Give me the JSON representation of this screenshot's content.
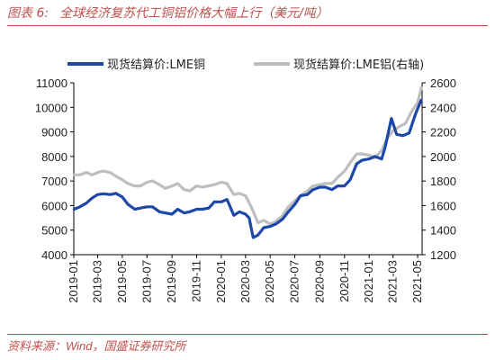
{
  "caption": {
    "figure_no": "图表 6:",
    "title": "全球经济复苏代工铜铝价格大幅上行（美元/吨）"
  },
  "source": {
    "label": "资料来源：",
    "name": "Wind",
    "rest": "，国盛证券研究所"
  },
  "colors": {
    "copper": "#1e48a8",
    "aluminum": "#bebebe",
    "caption": "#c0504d"
  },
  "chart_data": {
    "type": "line",
    "legend": [
      "现货结算价:LME铜",
      "现货结算价:LME铝(右轴)"
    ],
    "legend_position": "top",
    "grid": false,
    "x_ticks": [
      "2019-01",
      "2019-03",
      "2019-05",
      "2019-07",
      "2019-09",
      "2019-11",
      "2020-01",
      "2020-03",
      "2020-05",
      "2020-07",
      "2020-09",
      "2020-11",
      "2021-01",
      "2021-03",
      "2021-05"
    ],
    "y_left": {
      "min": 4000,
      "max": 11000,
      "ticks": [
        4000,
        5000,
        6000,
        7000,
        8000,
        9000,
        10000,
        11000
      ]
    },
    "y_right": {
      "min": 1200,
      "max": 2600,
      "ticks": [
        1200,
        1400,
        1600,
        1800,
        2000,
        2200,
        2400,
        2600
      ]
    },
    "series": [
      {
        "name": "现货结算价:LME铜",
        "axis": "left",
        "points": [
          [
            "2019-01-02",
            5850
          ],
          [
            "2019-01-16",
            5950
          ],
          [
            "2019-02-01",
            6100
          ],
          [
            "2019-02-15",
            6300
          ],
          [
            "2019-03-01",
            6450
          ],
          [
            "2019-03-15",
            6480
          ],
          [
            "2019-04-01",
            6450
          ],
          [
            "2019-04-15",
            6500
          ],
          [
            "2019-05-01",
            6350
          ],
          [
            "2019-05-15",
            6050
          ],
          [
            "2019-06-01",
            5850
          ],
          [
            "2019-06-15",
            5900
          ],
          [
            "2019-07-01",
            5950
          ],
          [
            "2019-07-15",
            5950
          ],
          [
            "2019-08-01",
            5750
          ],
          [
            "2019-08-15",
            5700
          ],
          [
            "2019-09-01",
            5650
          ],
          [
            "2019-09-15",
            5850
          ],
          [
            "2019-10-01",
            5700
          ],
          [
            "2019-10-15",
            5750
          ],
          [
            "2019-11-01",
            5850
          ],
          [
            "2019-11-15",
            5850
          ],
          [
            "2019-12-01",
            5900
          ],
          [
            "2019-12-15",
            6150
          ],
          [
            "2020-01-01",
            6150
          ],
          [
            "2020-01-15",
            6250
          ],
          [
            "2020-02-01",
            5600
          ],
          [
            "2020-02-15",
            5750
          ],
          [
            "2020-03-01",
            5650
          ],
          [
            "2020-03-10",
            5500
          ],
          [
            "2020-03-20",
            4700
          ],
          [
            "2020-04-01",
            4800
          ],
          [
            "2020-04-15",
            5100
          ],
          [
            "2020-05-01",
            5150
          ],
          [
            "2020-05-15",
            5250
          ],
          [
            "2020-06-01",
            5450
          ],
          [
            "2020-06-15",
            5750
          ],
          [
            "2020-07-01",
            6050
          ],
          [
            "2020-07-15",
            6400
          ],
          [
            "2020-08-01",
            6450
          ],
          [
            "2020-08-15",
            6650
          ],
          [
            "2020-09-01",
            6750
          ],
          [
            "2020-09-15",
            6750
          ],
          [
            "2020-10-01",
            6650
          ],
          [
            "2020-10-15",
            6800
          ],
          [
            "2020-11-01",
            6800
          ],
          [
            "2020-11-15",
            7050
          ],
          [
            "2020-12-01",
            7700
          ],
          [
            "2020-12-15",
            7850
          ],
          [
            "2021-01-01",
            7900
          ],
          [
            "2021-01-15",
            8000
          ],
          [
            "2021-02-01",
            7900
          ],
          [
            "2021-02-10",
            8400
          ],
          [
            "2021-02-25",
            9550
          ],
          [
            "2021-03-10",
            8900
          ],
          [
            "2021-03-25",
            8850
          ],
          [
            "2021-04-10",
            8950
          ],
          [
            "2021-04-25",
            9700
          ],
          [
            "2021-05-01",
            9950
          ],
          [
            "2021-05-10",
            10300
          ]
        ]
      },
      {
        "name": "现货结算价:LME铝(右轴)",
        "axis": "right",
        "points": [
          [
            "2019-01-02",
            1850
          ],
          [
            "2019-01-16",
            1850
          ],
          [
            "2019-02-01",
            1870
          ],
          [
            "2019-02-15",
            1850
          ],
          [
            "2019-03-01",
            1870
          ],
          [
            "2019-03-15",
            1880
          ],
          [
            "2019-04-01",
            1870
          ],
          [
            "2019-04-15",
            1840
          ],
          [
            "2019-05-01",
            1810
          ],
          [
            "2019-05-15",
            1780
          ],
          [
            "2019-06-01",
            1760
          ],
          [
            "2019-06-15",
            1760
          ],
          [
            "2019-07-01",
            1790
          ],
          [
            "2019-07-15",
            1800
          ],
          [
            "2019-08-01",
            1770
          ],
          [
            "2019-08-15",
            1740
          ],
          [
            "2019-09-01",
            1760
          ],
          [
            "2019-09-15",
            1780
          ],
          [
            "2019-10-01",
            1730
          ],
          [
            "2019-10-15",
            1720
          ],
          [
            "2019-11-01",
            1760
          ],
          [
            "2019-11-15",
            1750
          ],
          [
            "2019-12-01",
            1760
          ],
          [
            "2019-12-15",
            1770
          ],
          [
            "2020-01-01",
            1790
          ],
          [
            "2020-01-15",
            1780
          ],
          [
            "2020-02-01",
            1690
          ],
          [
            "2020-02-15",
            1700
          ],
          [
            "2020-03-01",
            1680
          ],
          [
            "2020-03-15",
            1590
          ],
          [
            "2020-04-01",
            1460
          ],
          [
            "2020-04-15",
            1480
          ],
          [
            "2020-05-01",
            1450
          ],
          [
            "2020-05-15",
            1470
          ],
          [
            "2020-06-01",
            1520
          ],
          [
            "2020-06-15",
            1590
          ],
          [
            "2020-07-01",
            1640
          ],
          [
            "2020-07-15",
            1680
          ],
          [
            "2020-08-01",
            1720
          ],
          [
            "2020-08-15",
            1760
          ],
          [
            "2020-09-01",
            1770
          ],
          [
            "2020-09-15",
            1780
          ],
          [
            "2020-10-01",
            1780
          ],
          [
            "2020-10-15",
            1830
          ],
          [
            "2020-11-01",
            1880
          ],
          [
            "2020-11-15",
            1950
          ],
          [
            "2020-12-01",
            2020
          ],
          [
            "2020-12-15",
            2020
          ],
          [
            "2021-01-01",
            2010
          ],
          [
            "2021-01-15",
            1990
          ],
          [
            "2021-02-01",
            2050
          ],
          [
            "2021-02-15",
            2150
          ],
          [
            "2021-03-01",
            2210
          ],
          [
            "2021-03-15",
            2240
          ],
          [
            "2021-04-01",
            2270
          ],
          [
            "2021-04-15",
            2360
          ],
          [
            "2021-05-01",
            2440
          ],
          [
            "2021-05-10",
            2560
          ]
        ]
      }
    ]
  }
}
